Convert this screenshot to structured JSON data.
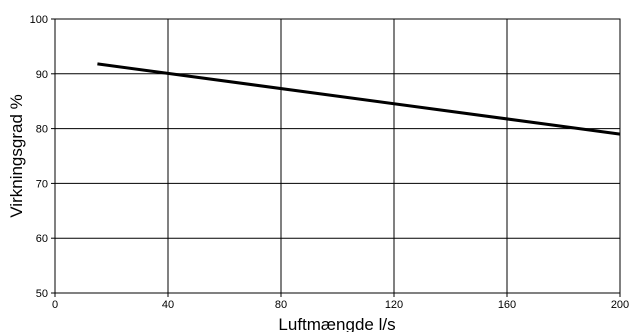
{
  "chart_data": {
    "type": "line",
    "xlabel": "Luftmængde l/s",
    "ylabel": "Virkningsgrad %",
    "xlim": [
      0,
      200
    ],
    "ylim": [
      50,
      100
    ],
    "x_ticks": [
      0,
      40,
      80,
      120,
      160,
      200
    ],
    "y_ticks": [
      50,
      60,
      70,
      80,
      90,
      100
    ],
    "grid": true,
    "series": [
      {
        "x": [
          15,
          200
        ],
        "y": [
          91.8,
          79.0
        ],
        "color": "#000000"
      }
    ]
  }
}
